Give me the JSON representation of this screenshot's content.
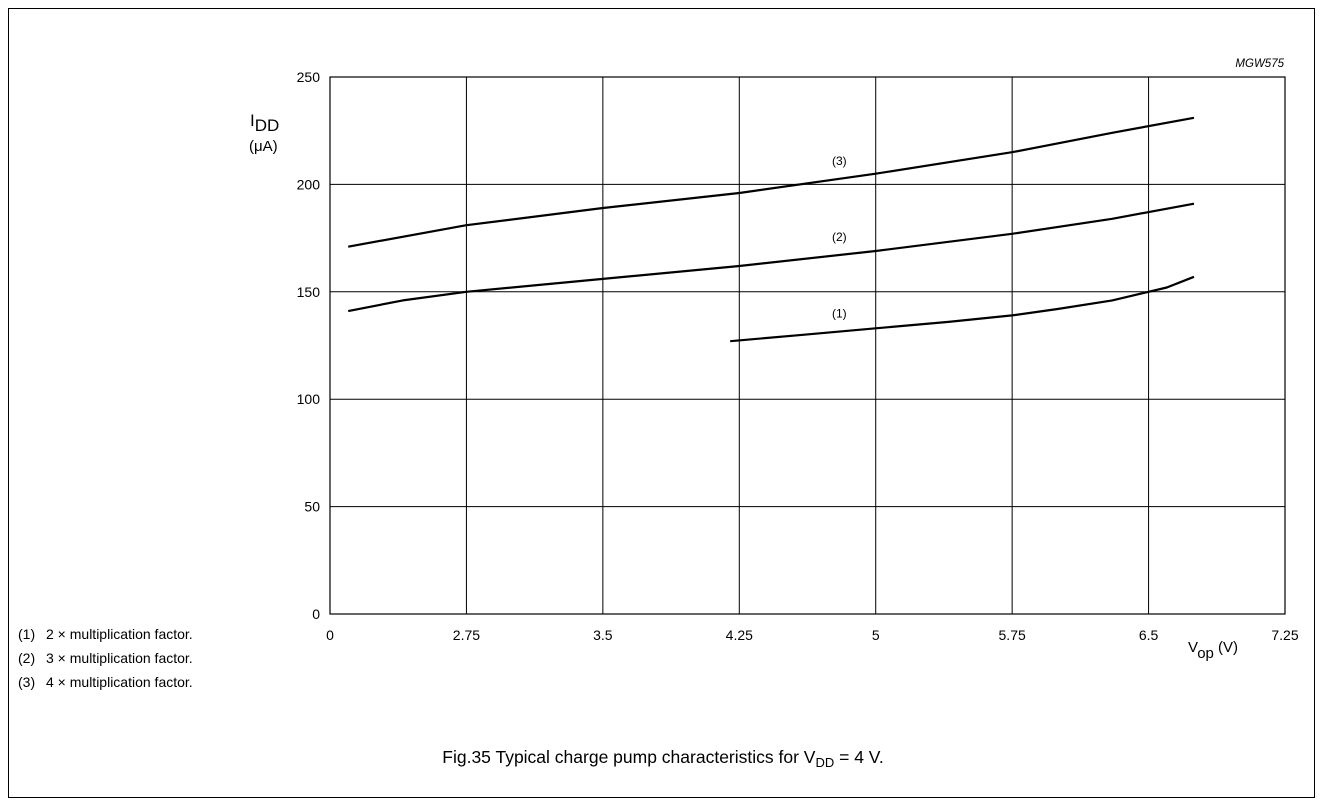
{
  "figure_code": "MGW575",
  "caption": {
    "prefix": "Fig.35  Typical charge pump characteristics for V",
    "sub": "DD",
    "suffix": " = 4 V."
  },
  "legend_notes": [
    {
      "num": "(1)",
      "text": "2 × multiplication factor."
    },
    {
      "num": "(2)",
      "text": "3 × multiplication factor."
    },
    {
      "num": "(3)",
      "text": "4 × multiplication factor."
    }
  ],
  "chart_data": {
    "type": "line",
    "xlabel": {
      "main": "V",
      "sub": "op",
      "unit": " (V)"
    },
    "ylabel": {
      "main": "I",
      "sub": "DD",
      "unit": "(μA)"
    },
    "x_tick_labels": [
      "0",
      "2.75",
      "3.5",
      "4.25",
      "5",
      "5.75",
      "6.5",
      "7.25"
    ],
    "y_tick_labels": [
      "0",
      "50",
      "100",
      "150",
      "200",
      "250"
    ],
    "ylim": [
      0,
      250
    ],
    "grid": true,
    "series": [
      {
        "name": "(1)",
        "x": [
          4.2,
          4.6,
          5.0,
          5.4,
          5.75,
          6.0,
          6.3,
          6.6,
          6.75
        ],
        "y": [
          127,
          130,
          133,
          136,
          139,
          142,
          146,
          152,
          157
        ]
      },
      {
        "name": "(2)",
        "x": [
          2.1,
          2.4,
          2.75,
          3.5,
          4.25,
          5.0,
          5.75,
          6.3,
          6.75
        ],
        "y": [
          141,
          146,
          150,
          156,
          162,
          169,
          177,
          184,
          191
        ]
      },
      {
        "name": "(3)",
        "x": [
          2.1,
          2.75,
          3.5,
          4.25,
          5.0,
          5.75,
          6.3,
          6.75
        ],
        "y": [
          171,
          181,
          189,
          196,
          205,
          215,
          224,
          231
        ]
      }
    ]
  }
}
